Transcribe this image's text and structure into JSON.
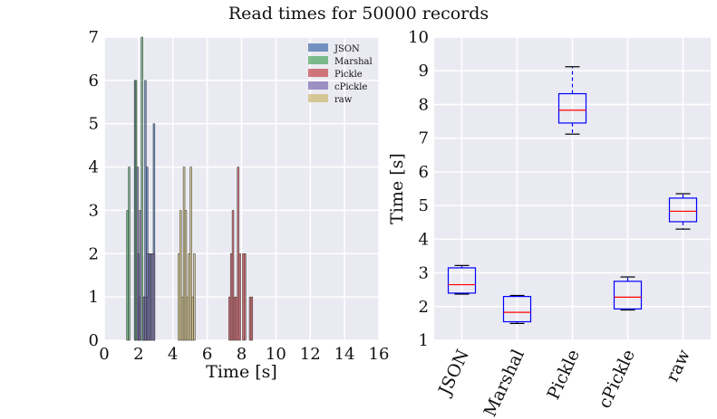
{
  "figure": {
    "title": "Read times for 50000 records"
  },
  "colors": {
    "JSON": "#4c72b0",
    "Marshal": "#55a868",
    "Pickle": "#c44e52",
    "cPickle": "#8172b2",
    "raw": "#ccb974",
    "panel_bg": "#eaeaf2",
    "grid": "#ffffff",
    "box": "#0000ff",
    "median": "#ff0000",
    "whisker_cap": "#000000"
  },
  "chart_data": [
    {
      "type": "histogram",
      "title": "",
      "xlabel": "Time [s]",
      "ylabel": "",
      "xlim": [
        0,
        16
      ],
      "ylim": [
        0,
        7
      ],
      "xticks": [
        "0",
        "2",
        "4",
        "6",
        "8",
        "10",
        "12",
        "14",
        "16"
      ],
      "yticks": [
        "0",
        "1",
        "2",
        "3",
        "4",
        "5",
        "6",
        "7"
      ],
      "bin_width": 0.1,
      "legend": {
        "placement": "top-right",
        "entries": [
          "JSON",
          "Marshal",
          "Pickle",
          "cPickle",
          "raw"
        ]
      },
      "series": [
        {
          "name": "JSON",
          "bins": [
            [
              1.75,
              6
            ],
            [
              1.95,
              2
            ],
            [
              2.25,
              1
            ],
            [
              2.35,
              6
            ],
            [
              2.45,
              4
            ],
            [
              2.55,
              2
            ],
            [
              2.65,
              2
            ],
            [
              2.85,
              5
            ]
          ]
        },
        {
          "name": "Marshal",
          "bins": [
            [
              1.3,
              3
            ],
            [
              1.4,
              4
            ],
            [
              1.8,
              6
            ],
            [
              2.15,
              7
            ],
            [
              2.3,
              1
            ]
          ]
        },
        {
          "name": "Pickle",
          "bins": [
            [
              7.25,
              1
            ],
            [
              7.35,
              2
            ],
            [
              7.45,
              3
            ],
            [
              7.55,
              1
            ],
            [
              7.65,
              1
            ],
            [
              7.75,
              4
            ],
            [
              7.85,
              2
            ],
            [
              8.05,
              2
            ],
            [
              8.15,
              2
            ],
            [
              8.45,
              1
            ],
            [
              8.55,
              1
            ]
          ]
        },
        {
          "name": "cPickle",
          "bins": [
            [
              1.9,
              4
            ],
            [
              2.0,
              1
            ],
            [
              2.05,
              3
            ],
            [
              2.25,
              1
            ],
            [
              2.35,
              1
            ],
            [
              2.45,
              2
            ],
            [
              2.5,
              1
            ],
            [
              2.6,
              2
            ],
            [
              2.75,
              2
            ],
            [
              2.85,
              2
            ]
          ]
        },
        {
          "name": "raw",
          "bins": [
            [
              4.3,
              2
            ],
            [
              4.4,
              3
            ],
            [
              4.5,
              1
            ],
            [
              4.6,
              4
            ],
            [
              4.7,
              3
            ],
            [
              4.8,
              1
            ],
            [
              4.9,
              2
            ],
            [
              5.0,
              4
            ],
            [
              5.1,
              1
            ],
            [
              5.2,
              2
            ]
          ]
        }
      ]
    },
    {
      "type": "box",
      "title": "",
      "xlabel": "",
      "ylabel": "Time [s]",
      "ylim": [
        1,
        10
      ],
      "yticks": [
        "1",
        "2",
        "3",
        "4",
        "5",
        "6",
        "7",
        "8",
        "9",
        "10"
      ],
      "categories": [
        "JSON",
        "Marshal",
        "Pickle",
        "cPickle",
        "raw"
      ],
      "boxes": [
        {
          "name": "JSON",
          "whislo": 2.37,
          "q1": 2.4,
          "med": 2.65,
          "q3": 3.15,
          "whishi": 3.22
        },
        {
          "name": "Marshal",
          "whislo": 1.5,
          "q1": 1.55,
          "med": 1.83,
          "q3": 2.3,
          "whishi": 2.33
        },
        {
          "name": "Pickle",
          "whislo": 7.12,
          "q1": 7.45,
          "med": 7.83,
          "q3": 8.32,
          "whishi": 9.12
        },
        {
          "name": "cPickle",
          "whislo": 1.9,
          "q1": 1.93,
          "med": 2.28,
          "q3": 2.75,
          "whishi": 2.88
        },
        {
          "name": "raw",
          "whislo": 4.3,
          "q1": 4.52,
          "med": 4.83,
          "q3": 5.22,
          "whishi": 5.35
        }
      ]
    }
  ]
}
